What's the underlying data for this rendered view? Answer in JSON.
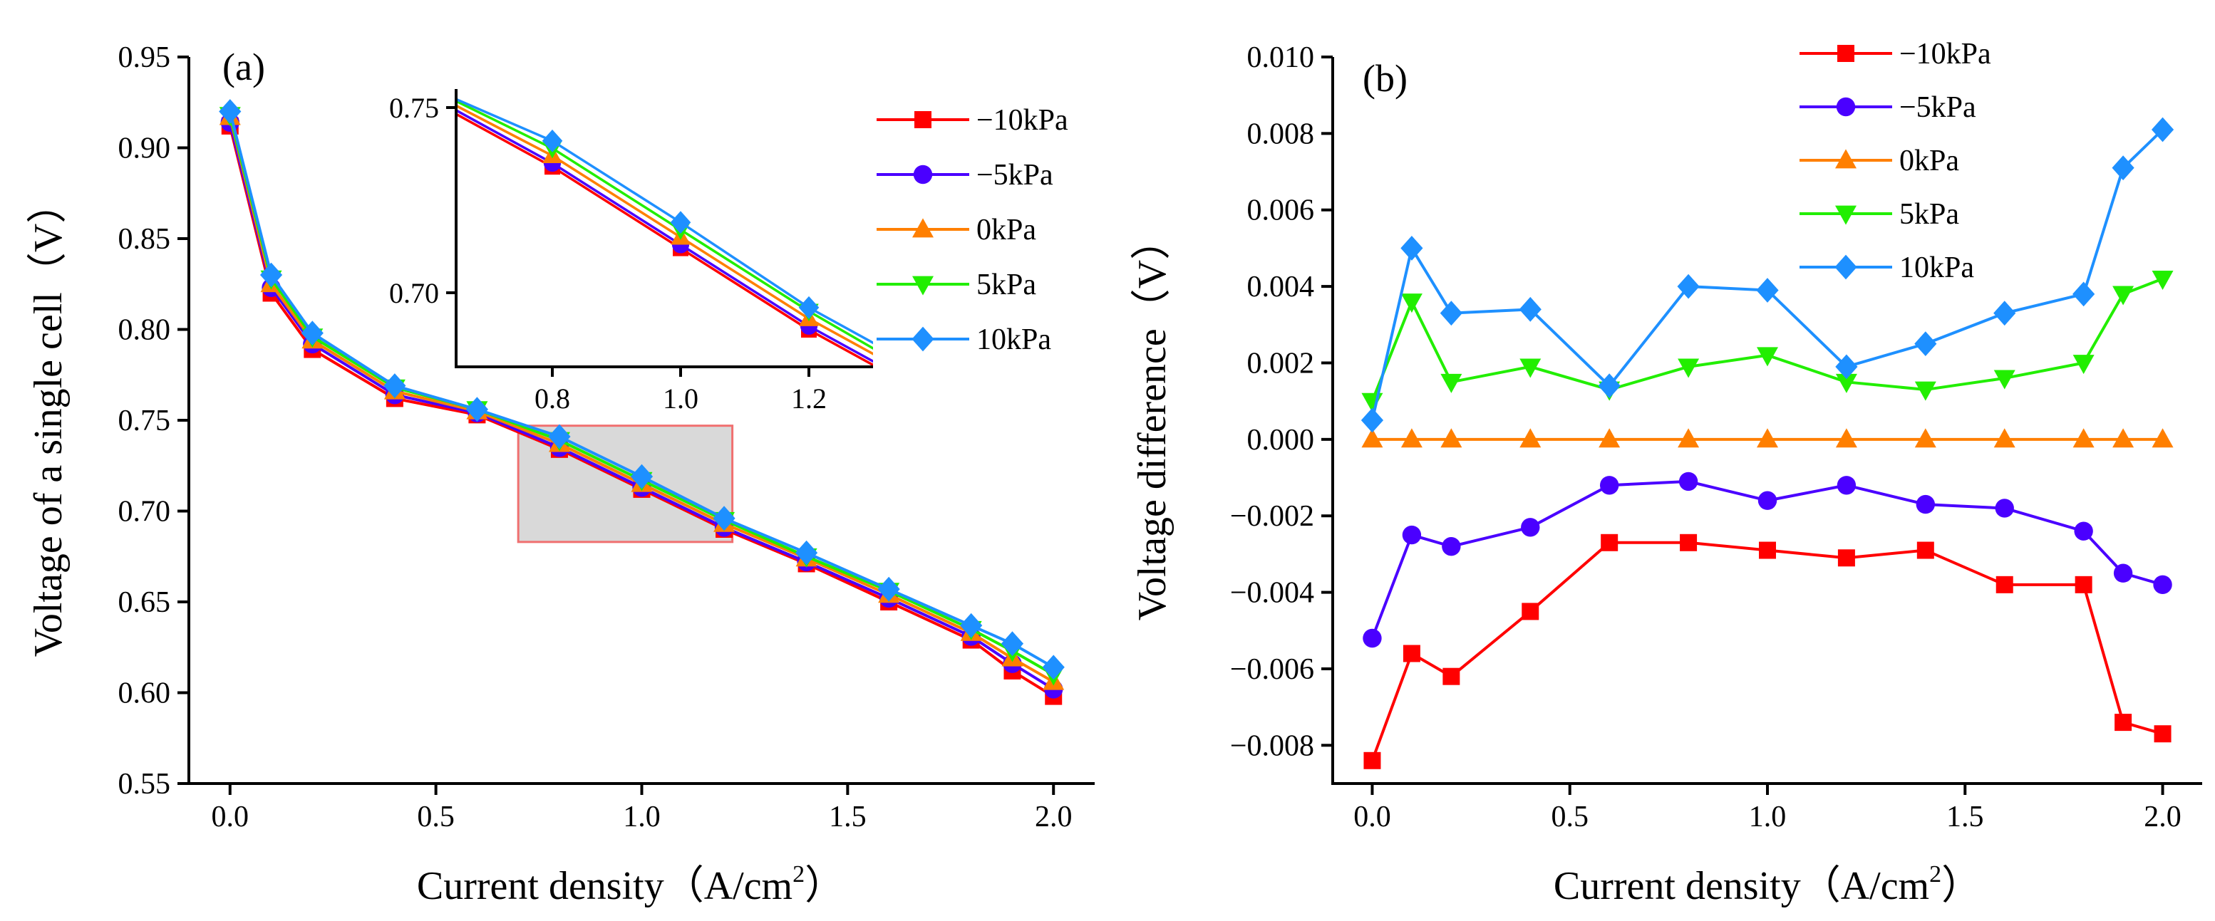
{
  "colors": {
    "m10": "#ff0000",
    "m5": "#4a00ff",
    "p0": "#ff7f00",
    "p5": "#22ee00",
    "p10": "#1e90ff",
    "zoom_fill": "#d9d9d9",
    "zoom_edge": "#f07070"
  },
  "chart_data": [
    {
      "panel": "(a)",
      "type": "line",
      "xlabel_main": "Current density（A/cm",
      "xlabel_sup": "2",
      "xlabel_close": "）",
      "ylabel": "Voltage of a single cell（V）",
      "xlim": [
        -0.1,
        2.1
      ],
      "ylim": [
        0.55,
        0.95
      ],
      "xticks": [
        "0.0",
        "0.5",
        "1.0",
        "1.5",
        "2.0"
      ],
      "yticks": [
        "0.55",
        "0.60",
        "0.65",
        "0.70",
        "0.75",
        "0.80",
        "0.85",
        "0.90",
        "0.95"
      ],
      "legend_position": "top-right",
      "x": [
        0.0,
        0.1,
        0.2,
        0.4,
        0.6,
        0.8,
        1.0,
        1.2,
        1.4,
        1.6,
        1.8,
        1.9,
        2.0
      ],
      "series": [
        {
          "name": "−10kPa",
          "marker": "square",
          "color_key": "m10",
          "values": [
            0.912,
            0.82,
            0.789,
            0.762,
            0.753,
            0.734,
            0.712,
            0.69,
            0.671,
            0.65,
            0.629,
            0.612,
            0.598
          ]
        },
        {
          "name": "−5kPa",
          "marker": "circle",
          "color_key": "m5",
          "values": [
            0.914,
            0.823,
            0.792,
            0.764,
            0.754,
            0.735,
            0.713,
            0.691,
            0.672,
            0.652,
            0.631,
            0.616,
            0.602
          ]
        },
        {
          "name": "0kPa",
          "marker": "triangle-up",
          "color_key": "p0",
          "values": [
            0.917,
            0.825,
            0.794,
            0.766,
            0.755,
            0.737,
            0.715,
            0.693,
            0.674,
            0.654,
            0.633,
            0.619,
            0.606
          ]
        },
        {
          "name": "5kPa",
          "marker": "triangle-down",
          "color_key": "p5",
          "values": [
            0.918,
            0.828,
            0.796,
            0.768,
            0.756,
            0.739,
            0.717,
            0.695,
            0.675,
            0.656,
            0.635,
            0.623,
            0.61
          ]
        },
        {
          "name": "10kPa",
          "marker": "diamond",
          "color_key": "p10",
          "values": [
            0.92,
            0.83,
            0.798,
            0.769,
            0.756,
            0.741,
            0.719,
            0.696,
            0.677,
            0.657,
            0.637,
            0.627,
            0.614
          ]
        }
      ],
      "zoom_region": {
        "x": [
          0.7,
          1.22
        ],
        "y": [
          0.683,
          0.747
        ]
      },
      "inset": {
        "xlim": [
          0.65,
          1.3
        ],
        "ylim": [
          0.68,
          0.755
        ],
        "xticks": [
          "0.8",
          "1.0",
          "1.2"
        ],
        "yticks": [
          "0.70",
          "0.75"
        ]
      }
    },
    {
      "panel": "(b)",
      "type": "line",
      "xlabel_main": "Current density（A/cm",
      "xlabel_sup": "2",
      "xlabel_close": "）",
      "ylabel": "Voltage difference（V）",
      "xlim": [
        -0.1,
        2.1
      ],
      "ylim": [
        -0.009,
        0.01
      ],
      "xticks": [
        "0.0",
        "0.5",
        "1.0",
        "1.5",
        "2.0"
      ],
      "yticks": [
        "−0.008",
        "−0.006",
        "−0.004",
        "−0.002",
        "0.000",
        "0.002",
        "0.004",
        "0.006",
        "0.008",
        "0.010"
      ],
      "legend_position": "top-right",
      "x": [
        0.0,
        0.1,
        0.2,
        0.4,
        0.6,
        0.8,
        1.0,
        1.2,
        1.4,
        1.6,
        1.8,
        1.9,
        2.0
      ],
      "series": [
        {
          "name": "−10kPa",
          "marker": "square",
          "color_key": "m10",
          "values": [
            -0.0084,
            -0.0056,
            -0.0062,
            -0.0045,
            -0.0027,
            -0.0027,
            -0.0029,
            -0.0031,
            -0.0029,
            -0.0038,
            -0.0038,
            -0.0074,
            -0.0077
          ]
        },
        {
          "name": "−5kPa",
          "marker": "circle",
          "color_key": "m5",
          "values": [
            -0.0052,
            -0.0025,
            -0.0028,
            -0.0023,
            -0.0012,
            -0.0011,
            -0.0016,
            -0.0012,
            -0.0017,
            -0.0018,
            -0.0024,
            -0.0035,
            -0.0038
          ]
        },
        {
          "name": "0kPa",
          "marker": "triangle-up",
          "color_key": "p0",
          "values": [
            0.0,
            0.0,
            0.0,
            0.0,
            0.0,
            0.0,
            0.0,
            0.0,
            0.0,
            0.0,
            0.0,
            0.0,
            0.0
          ]
        },
        {
          "name": "5kPa",
          "marker": "triangle-down",
          "color_key": "p5",
          "values": [
            0.001,
            0.0036,
            0.0015,
            0.0019,
            0.0013,
            0.0019,
            0.0022,
            0.0015,
            0.0013,
            0.0016,
            0.002,
            0.0038,
            0.0042
          ]
        },
        {
          "name": "10kPa",
          "marker": "diamond",
          "color_key": "p10",
          "values": [
            0.0005,
            0.005,
            0.0033,
            0.0034,
            0.0014,
            0.004,
            0.0039,
            0.0019,
            0.0025,
            0.0033,
            0.0038,
            0.0071,
            0.0081
          ]
        }
      ]
    }
  ]
}
